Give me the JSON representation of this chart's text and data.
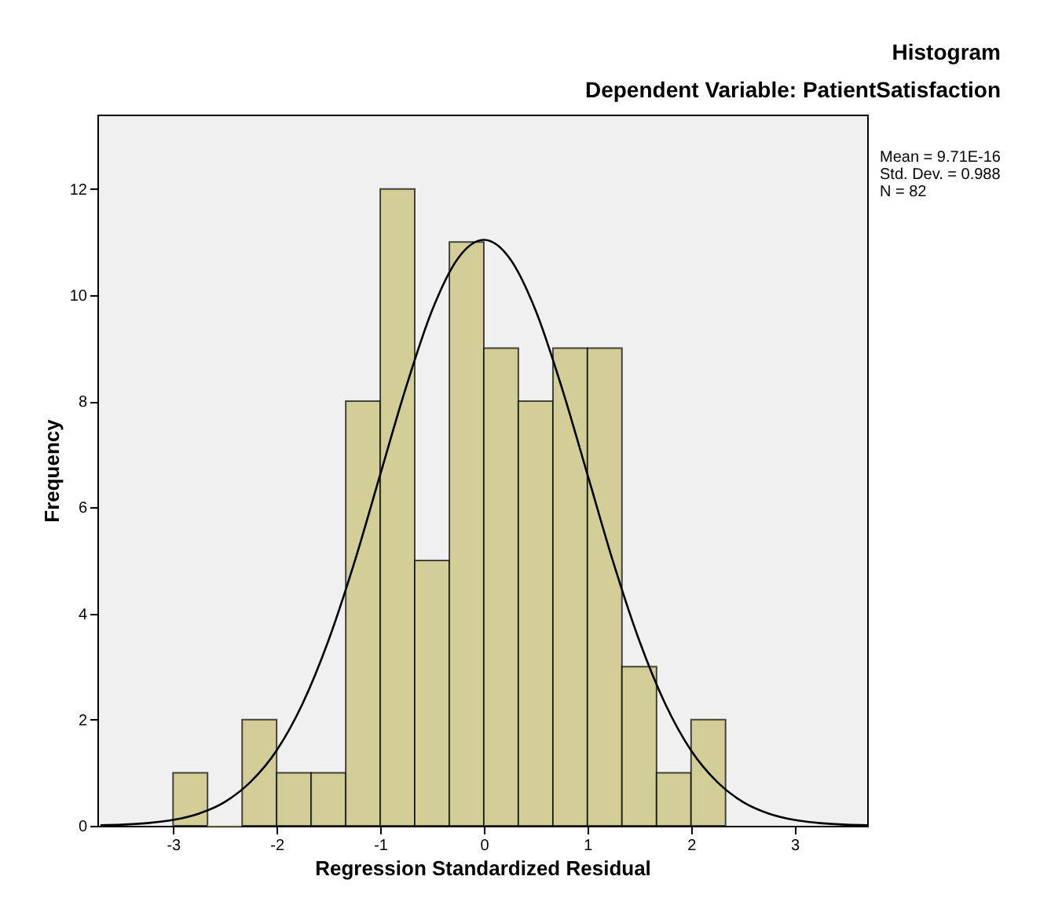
{
  "chart_data": {
    "type": "histogram",
    "title": "Histogram",
    "subtitle": "Dependent Variable: PatientSatisfaction",
    "xlabel": "Regression Standardized Residual",
    "ylabel": "Frequency",
    "bins": [
      -3,
      -2.667,
      -2.333,
      -2,
      -1.667,
      -1.333,
      -1,
      -0.667,
      -0.333,
      0,
      0.333,
      0.667,
      1,
      1.333,
      1.667,
      2,
      2.333
    ],
    "values": [
      1,
      0,
      2,
      1,
      1,
      8,
      12,
      5,
      11,
      9,
      8,
      9,
      9,
      3,
      1,
      2
    ],
    "color": "#d3ce97",
    "series": [
      {
        "type": "line",
        "color": "#000000",
        "x": [
          -3.7,
          -3.5,
          -3.25,
          -3,
          -2.75,
          -2.5,
          -2.25,
          -2,
          -1.75,
          -1.5,
          -1.25,
          -1,
          -0.75,
          -0.5,
          -0.25,
          0,
          0.25,
          0.5,
          0.75,
          1,
          1.25,
          1.5,
          1.75,
          2,
          2.25,
          2.5,
          2.75,
          3,
          3.25,
          3.5,
          3.7
        ],
        "values": [
          0.01,
          0.02,
          0.05,
          0.11,
          0.23,
          0.45,
          0.83,
          1.42,
          2.3,
          3.49,
          4.96,
          6.62,
          8.27,
          9.71,
          10.69,
          11.04,
          10.69,
          9.71,
          8.27,
          6.62,
          4.96,
          3.49,
          2.3,
          1.42,
          0.83,
          0.45,
          0.23,
          0.11,
          0.05,
          0.02,
          0.01
        ]
      }
    ],
    "xlim": [
      -3.73,
      3.7
    ],
    "ylim": [
      0,
      13.4
    ],
    "xticks": [
      -3,
      -2,
      -1,
      0,
      1,
      2,
      3
    ],
    "yticks": [
      0,
      2,
      4,
      6,
      8,
      10,
      12
    ],
    "grid": false,
    "annotations": [
      "Mean = 9.71E-16",
      "Std. Dev. = 0.988",
      "N = 82"
    ]
  }
}
